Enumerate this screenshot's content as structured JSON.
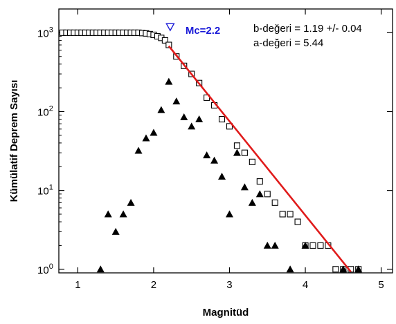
{
  "chart_data": {
    "type": "scatter",
    "title": "",
    "xlabel": "Magnitüd",
    "ylabel": "Kümülatif Deprem Sayısı",
    "xlim": [
      0.75,
      5.15
    ],
    "ylim": [
      0.9,
      2000
    ],
    "y_scale": "log",
    "x_ticks": [
      1,
      2,
      3,
      4,
      5
    ],
    "y_ticks": [
      {
        "value": 1,
        "base": "10",
        "exp": "0"
      },
      {
        "value": 10,
        "base": "10",
        "exp": "1"
      },
      {
        "value": 100,
        "base": "10",
        "exp": "2"
      },
      {
        "value": 1000,
        "base": "10",
        "exp": "3"
      }
    ],
    "grid": false,
    "colors": {
      "fit_line": "#e01b1b",
      "mc_marker": "#1a1ad8",
      "points": "#000000"
    },
    "series": [
      {
        "marker": "open-square",
        "x": [
          0.8,
          0.85,
          0.9,
          0.95,
          1.0,
          1.05,
          1.1,
          1.15,
          1.2,
          1.25,
          1.3,
          1.35,
          1.4,
          1.45,
          1.5,
          1.55,
          1.6,
          1.65,
          1.7,
          1.75,
          1.8,
          1.85,
          1.9,
          1.95,
          2.0,
          2.05,
          2.1,
          2.15,
          2.2,
          2.3,
          2.4,
          2.5,
          2.6,
          2.7,
          2.8,
          2.9,
          3.0,
          3.1,
          3.2,
          3.3,
          3.4,
          3.5,
          3.6,
          3.7,
          3.8,
          3.9,
          4.0,
          4.1,
          4.2,
          4.3,
          4.4,
          4.5,
          4.6,
          4.7
        ],
        "y": [
          1000,
          1000,
          1000,
          1000,
          1000,
          1000,
          1000,
          1000,
          1000,
          1000,
          1000,
          1000,
          1000,
          1000,
          1000,
          1000,
          1000,
          1000,
          1000,
          1000,
          1000,
          990,
          980,
          960,
          940,
          900,
          860,
          800,
          700,
          500,
          380,
          300,
          230,
          150,
          120,
          80,
          65,
          37,
          30,
          23,
          13,
          9,
          7,
          5,
          5,
          4,
          2,
          2,
          2,
          2,
          1,
          1,
          1,
          1
        ]
      },
      {
        "marker": "filled-triangle",
        "x": [
          1.3,
          1.4,
          1.5,
          1.6,
          1.7,
          1.8,
          1.9,
          2.0,
          2.1,
          2.2,
          2.3,
          2.4,
          2.5,
          2.6,
          2.7,
          2.8,
          2.9,
          3.0,
          3.1,
          3.2,
          3.3,
          3.4,
          3.5,
          3.6,
          3.8,
          4.0,
          4.5,
          4.7
        ],
        "y": [
          1,
          5,
          3,
          5,
          7,
          32,
          46,
          54,
          105,
          240,
          135,
          85,
          65,
          80,
          28,
          24,
          15,
          5,
          30,
          11,
          7,
          9,
          2,
          2,
          1,
          2,
          1,
          1
        ]
      }
    ],
    "fit_line": {
      "x": [
        2.2,
        4.6
      ],
      "y": [
        678,
        0.93
      ]
    },
    "mc": {
      "label": "Mc=2.2",
      "x": 2.2,
      "y": 1180
    },
    "annotations": [
      "b-değeri = 1.19 +/- 0.04",
      "a-değeri = 5.44"
    ]
  }
}
